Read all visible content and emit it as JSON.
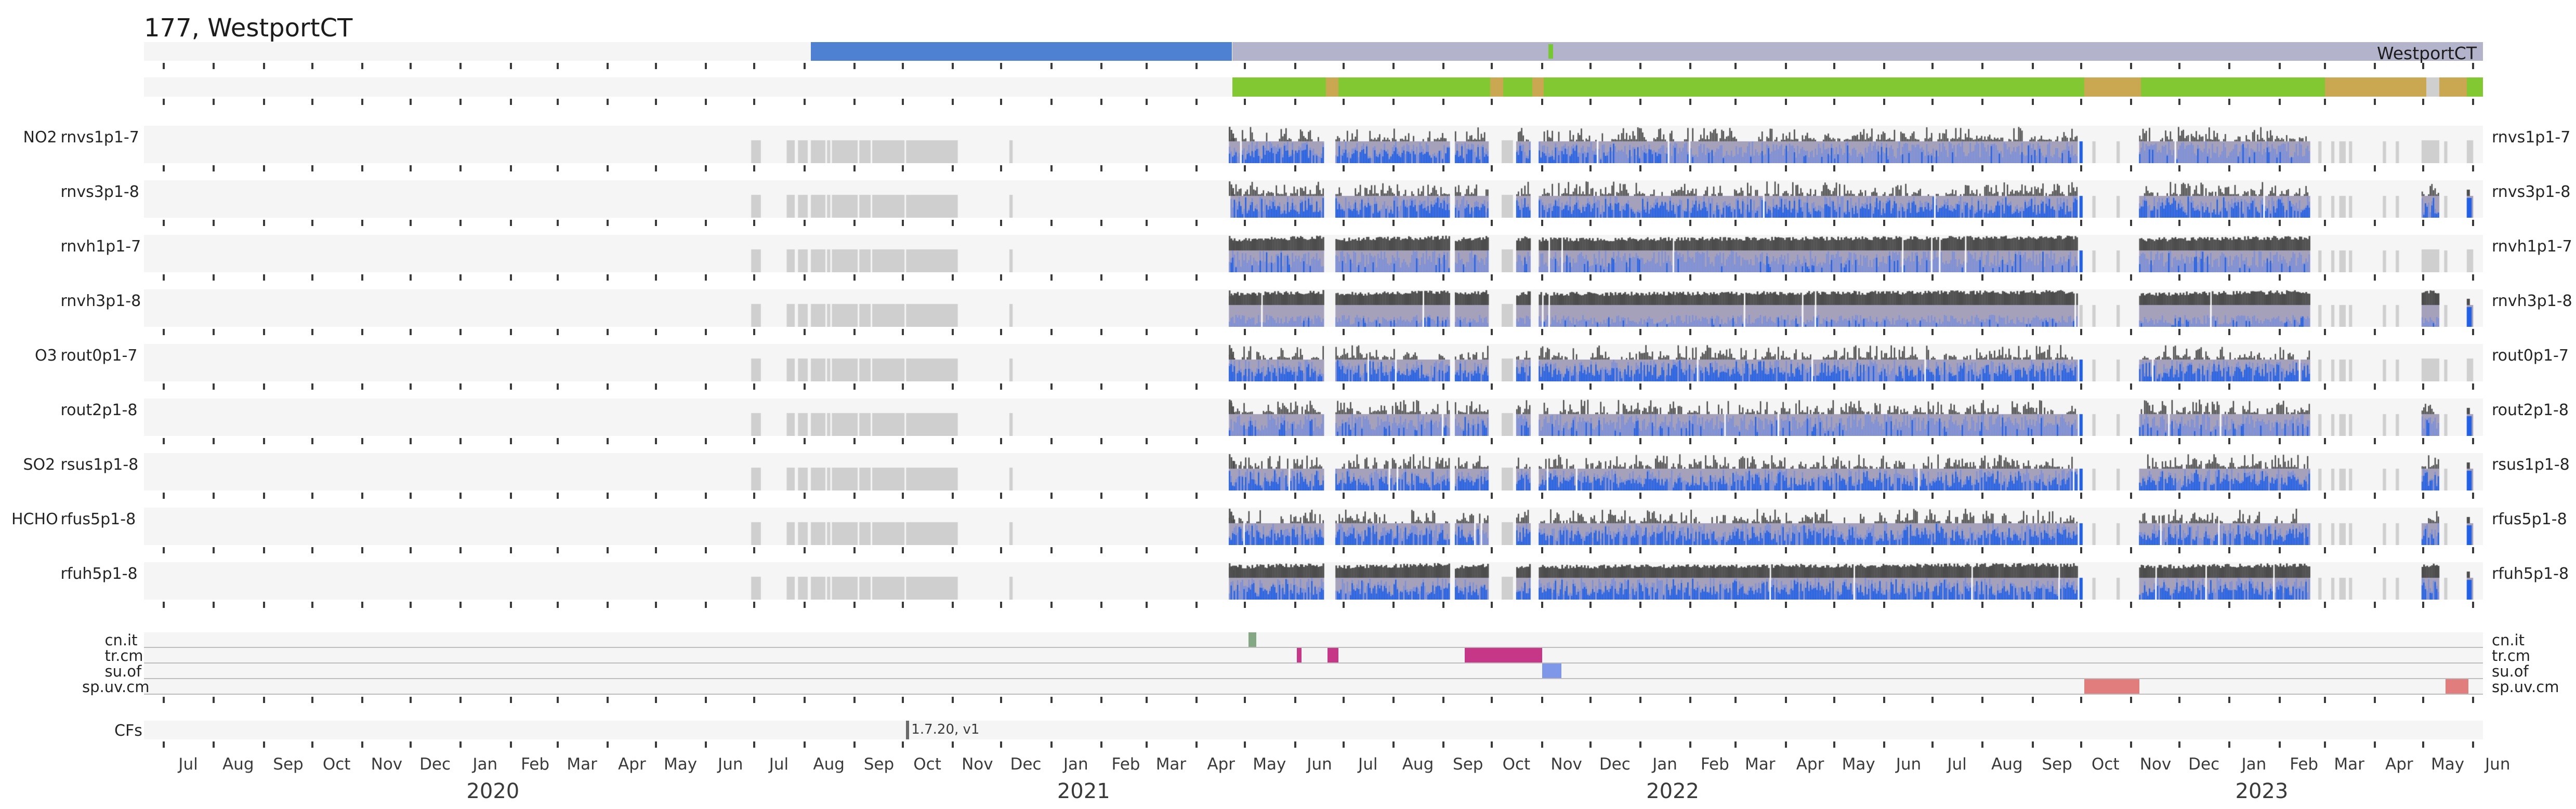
{
  "colors": {
    "track_bg": "#f5f5f5",
    "blue_segment": "#4e81d1",
    "lavender_segment": "#b3b3cc",
    "green": "#82c832",
    "tan": "#c9a851",
    "nodata_gray": "#cfcfcf",
    "band_bg": "#a5a1bb",
    "bar_gray": "#4d4d4d",
    "blue_bright": "#2160e4",
    "blue_soft": "#7d90d8",
    "tick": "#3a3a3a",
    "separator": "#bdbdbd",
    "marker_green": "#76c832",
    "cfs_marker": "#6a6a6a"
  },
  "chart_data": {
    "type": "timeline-availability",
    "title": "177, WestportCT",
    "x_axis": {
      "start": "2019-06-19",
      "end": "2023-06-07",
      "tick_interval": "month",
      "month_names": [
        "Jan",
        "Feb",
        "Mar",
        "Apr",
        "May",
        "Jun",
        "Jul",
        "Aug",
        "Sep",
        "Oct",
        "Nov",
        "Dec"
      ],
      "first_month": "2019-07-01",
      "n_months": 48,
      "year_labels": [
        {
          "text": "2020",
          "at": "2020-01-01"
        },
        {
          "text": "2021",
          "at": "2021-01-01"
        },
        {
          "text": "2022",
          "at": "2022-01-01"
        },
        {
          "text": "2023",
          "at": "2023-01-01"
        }
      ]
    },
    "station_track": {
      "label": "WestportCT",
      "segments": [
        {
          "color": "blue_segment",
          "from": "2020-08-05",
          "to": "2021-04-23"
        },
        {
          "color": "lavender_segment",
          "from": "2021-04-23",
          "to": "2023-06-07"
        }
      ],
      "marker": {
        "color": "marker_green",
        "from": "2021-11-05",
        "to": "2021-11-08"
      }
    },
    "presence_track": {
      "base": {
        "color": "green",
        "from": "2021-04-23",
        "to": "2023-06-07"
      },
      "overlays": [
        {
          "color": "tan",
          "from": "2021-06-20",
          "to": "2021-06-28"
        },
        {
          "color": "tan",
          "from": "2021-09-30",
          "to": "2021-10-08"
        },
        {
          "color": "tan",
          "from": "2021-10-26",
          "to": "2021-11-02"
        },
        {
          "color": "tan",
          "from": "2022-10-03",
          "to": "2022-11-07"
        },
        {
          "color": "tan",
          "from": "2023-03-01",
          "to": "2023-05-03"
        },
        {
          "color": "nodata_gray",
          "from": "2023-05-03",
          "to": "2023-05-11"
        },
        {
          "color": "tan",
          "from": "2023-05-11",
          "to": "2023-05-28"
        }
      ]
    },
    "rows": [
      {
        "species": "NO2",
        "label": "rnvs1p1-7",
        "top_density": "sparse",
        "blue_style": "fade",
        "has_end_data": false
      },
      {
        "species": "",
        "label": "rnvs3p1-8",
        "top_density": "sparse",
        "blue_style": "bright",
        "has_end_data": true
      },
      {
        "species": "",
        "label": "rnvh1p1-7",
        "top_density": "dense",
        "blue_style": "muted",
        "has_end_data": false
      },
      {
        "species": "",
        "label": "rnvh3p1-8",
        "top_density": "dense",
        "blue_style": "sparse",
        "has_end_data": true
      },
      {
        "species": "O3",
        "label": "rout0p1-7",
        "top_density": "sparse",
        "blue_style": "bright",
        "has_end_data": false
      },
      {
        "species": "",
        "label": "rout2p1-8",
        "top_density": "sparse",
        "blue_style": "muted",
        "has_end_data": true
      },
      {
        "species": "SO2",
        "label": "rsus1p1-8",
        "top_density": "sparse",
        "blue_style": "bright",
        "has_end_data": true
      },
      {
        "species": "HCHO",
        "label": "rfus5p1-8",
        "top_density": "sparse",
        "blue_style": "bright",
        "has_end_data": true
      },
      {
        "species": "",
        "label": "rfuh5p1-8",
        "top_density": "dense",
        "blue_style": "bright",
        "has_end_data": true
      }
    ],
    "row_common": {
      "gray_blocks": [
        [
          "2020-06-29",
          "2020-07-05"
        ],
        [
          "2020-07-21",
          "2020-07-26"
        ],
        [
          "2020-07-28",
          "2020-08-03"
        ],
        [
          "2020-08-05",
          "2020-08-14"
        ],
        [
          "2020-08-15",
          "2020-08-17"
        ],
        [
          "2020-08-18",
          "2020-09-03"
        ],
        [
          "2020-09-04",
          "2020-09-11"
        ],
        [
          "2020-09-12",
          "2020-10-02"
        ],
        [
          "2020-10-03",
          "2020-11-04"
        ],
        [
          "2020-12-06",
          "2020-12-08"
        ],
        [
          "2021-10-07",
          "2021-10-14"
        ]
      ],
      "bar_segments": [
        [
          "2021-04-21",
          "2021-06-19"
        ],
        [
          "2021-06-26",
          "2021-09-05"
        ],
        [
          "2021-09-08",
          "2021-09-29"
        ],
        [
          "2021-10-16",
          "2021-10-25"
        ],
        [
          "2021-10-30",
          "2022-09-29"
        ],
        [
          "2022-11-06",
          "2023-02-20"
        ]
      ],
      "thin_marks": [
        {
          "from": "2022-09-30",
          "to": "2022-10-02",
          "color": "blue"
        },
        {
          "from": "2022-10-08",
          "to": "2022-10-10",
          "color": "gray"
        },
        {
          "from": "2022-10-23",
          "to": "2022-10-25",
          "color": "gray"
        },
        {
          "from": "2023-02-25",
          "to": "2023-02-27",
          "color": "gray"
        },
        {
          "from": "2023-03-05",
          "to": "2023-03-07",
          "color": "gray"
        },
        {
          "from": "2023-03-10",
          "to": "2023-03-14",
          "color": "gray"
        },
        {
          "from": "2023-03-16",
          "to": "2023-03-18",
          "color": "gray"
        },
        {
          "from": "2023-04-06",
          "to": "2023-04-08",
          "color": "gray"
        },
        {
          "from": "2023-04-14",
          "to": "2023-04-16",
          "color": "gray"
        },
        {
          "from": "2023-05-14",
          "to": "2023-05-16",
          "color": "gray"
        }
      ],
      "end_blocks": [
        {
          "from": "2023-04-30",
          "to": "2023-05-11",
          "kind": "block"
        },
        {
          "from": "2023-05-28",
          "to": "2023-06-01",
          "kind": "spike"
        }
      ]
    },
    "aux_rows": [
      {
        "label": "cn.it",
        "color": "#84a884",
        "segments": [
          [
            "2021-05-03",
            "2021-05-08"
          ]
        ]
      },
      {
        "label": "tr.cm",
        "color": "#c73788",
        "segments": [
          [
            "2021-06-02",
            "2021-06-05"
          ],
          [
            "2021-06-21",
            "2021-06-28"
          ],
          [
            "2021-09-14",
            "2021-11-01"
          ]
        ]
      },
      {
        "label": "su.of",
        "color": "#7e97e8",
        "segments": [
          [
            "2021-11-01",
            "2021-11-13"
          ]
        ]
      },
      {
        "label": "sp.uv.cm",
        "color": "#e17d7d",
        "segments": [
          [
            "2022-10-03",
            "2022-11-06"
          ],
          [
            "2023-05-15",
            "2023-05-29"
          ]
        ]
      }
    ],
    "cfs_row": {
      "label": "CFs",
      "marker_date": "2020-10-03",
      "annotation": "1.7.20, v1"
    }
  }
}
